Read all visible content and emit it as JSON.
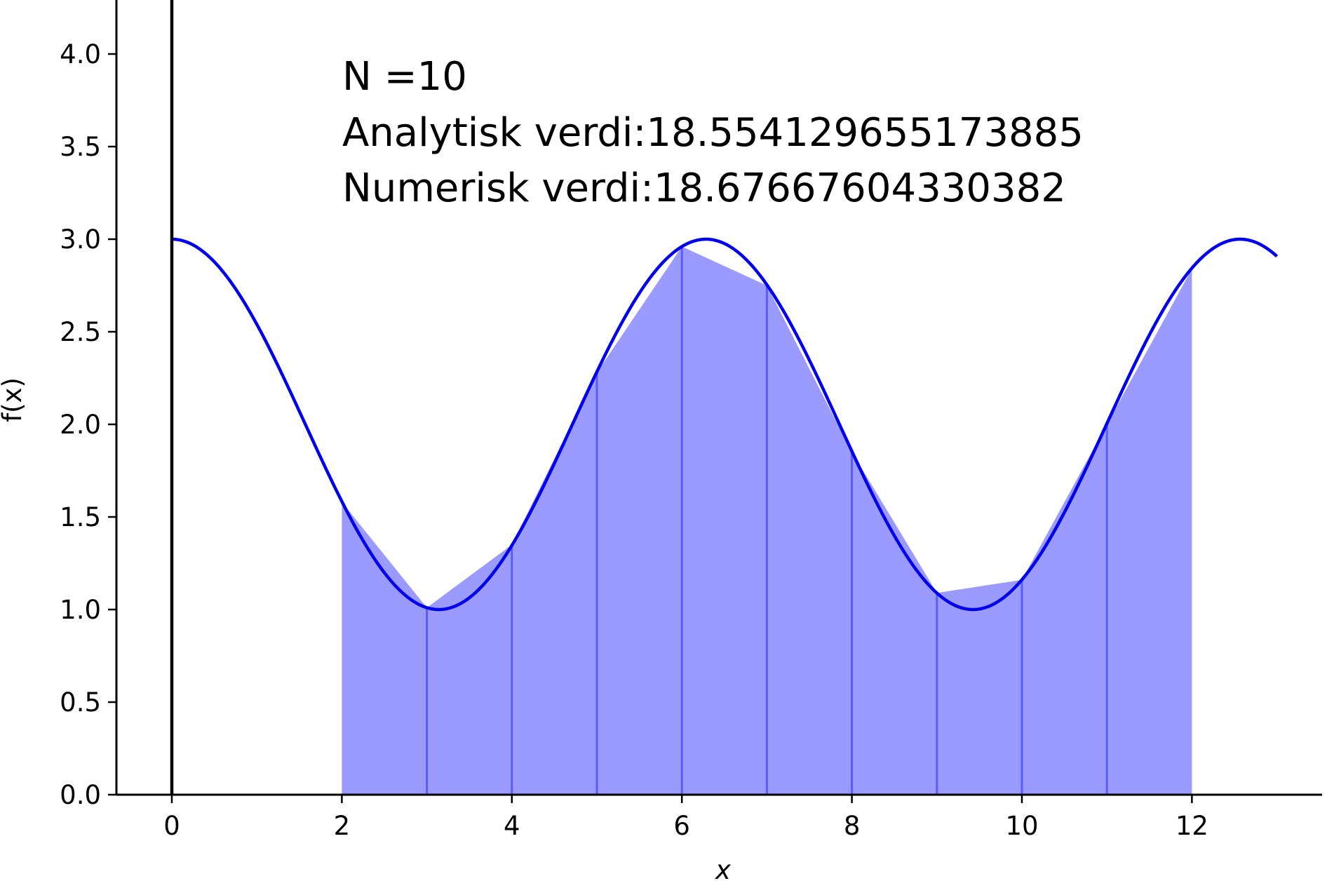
{
  "chart_data": {
    "type": "area",
    "xlabel": "x",
    "ylabel": "f(x)",
    "xlim": [
      -0.65,
      13.6
    ],
    "ylim": [
      0.0,
      4.3
    ],
    "x_ticks": [
      0,
      2,
      4,
      6,
      8,
      10,
      12
    ],
    "x_tick_labels": [
      "0",
      "2",
      "4",
      "6",
      "8",
      "10",
      "12"
    ],
    "y_ticks": [
      0.0,
      0.5,
      1.0,
      1.5,
      2.0,
      2.5,
      3.0,
      3.5,
      4.0
    ],
    "y_tick_labels": [
      "0.0",
      "0.5",
      "1.0",
      "1.5",
      "2.0",
      "2.5",
      "3.0",
      "3.5",
      "4.0"
    ],
    "grid": false,
    "curve": {
      "x_range": [
        0,
        13
      ],
      "samples": [
        [
          0,
          3.0
        ],
        [
          1,
          2.54
        ],
        [
          2,
          1.58
        ],
        [
          3,
          1.01
        ],
        [
          4,
          1.35
        ],
        [
          5,
          2.28
        ],
        [
          6,
          2.96
        ],
        [
          7,
          2.75
        ],
        [
          8,
          1.85
        ],
        [
          9,
          1.09
        ],
        [
          10,
          1.16
        ],
        [
          11,
          2.0
        ],
        [
          12,
          2.84
        ],
        [
          12.566,
          3.0
        ],
        [
          13,
          2.91
        ]
      ],
      "color": "#0000ee"
    },
    "trapezoids": {
      "x": [
        2,
        3,
        4,
        5,
        6,
        7,
        8,
        9,
        10,
        11,
        12
      ],
      "y": [
        1.58,
        1.01,
        1.35,
        2.28,
        2.96,
        2.75,
        1.85,
        1.09,
        1.16,
        2.0,
        2.84
      ],
      "fill_color": "#9b9bff",
      "edge_color": "#5b5bff"
    },
    "annotations": [
      "N =10",
      "Analytisk verdi:18.554129655173885",
      "Numerisk verdi:18.67667604330382"
    ]
  }
}
